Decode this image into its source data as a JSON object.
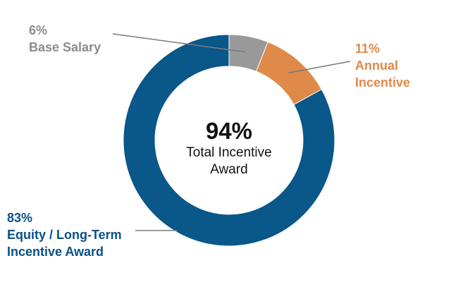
{
  "chart_data": {
    "type": "pie",
    "variant": "donut",
    "slices": [
      {
        "label_lines": [
          "6%",
          "Base Salary"
        ],
        "value": 6,
        "color": "#999999",
        "label_color": "#8c8c8c"
      },
      {
        "label_lines": [
          "11%",
          "Annual",
          "Incentive"
        ],
        "value": 11,
        "color": "#e08a4a",
        "label_color": "#e0894a"
      },
      {
        "label_lines": [
          "83%",
          "Equity / Long-Term",
          "Incentive Award"
        ],
        "value": 83,
        "color": "#0a5789",
        "label_color": "#0a5186"
      }
    ],
    "center": {
      "value": "94%",
      "line1": "Total Incentive",
      "line2": "Award"
    },
    "legend": "none"
  }
}
